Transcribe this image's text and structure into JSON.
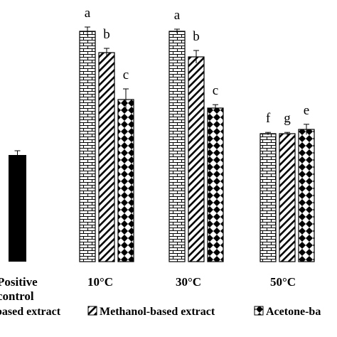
{
  "chart_data": {
    "type": "bar",
    "categories": [
      "Positive control",
      "10°C",
      "30°C",
      "50°C"
    ],
    "category_lines": [
      [
        "Positive",
        "control"
      ],
      [
        "10°C"
      ],
      [
        "30°C"
      ],
      [
        "50°C"
      ]
    ],
    "positive_control": {
      "value": 25,
      "error": 1
    },
    "series": [
      {
        "name": "based extract",
        "pattern": "brick",
        "values": [
          null,
          54,
          54,
          30
        ],
        "errors": [
          null,
          1,
          0.5,
          0.3
        ],
        "letters": [
          null,
          "a",
          "a",
          "f"
        ]
      },
      {
        "name": "Methanol-based extract",
        "pattern": "diagonal",
        "values": [
          null,
          49,
          48,
          30
        ],
        "errors": [
          null,
          1,
          1.5,
          0.3
        ],
        "letters": [
          null,
          "b",
          "b",
          "g"
        ]
      },
      {
        "name": "Acetone-ba",
        "pattern": "diamond",
        "values": [
          null,
          38,
          36,
          31
        ],
        "errors": [
          null,
          2.5,
          0.8,
          1.2
        ],
        "letters": [
          null,
          "c",
          "c",
          "e"
        ]
      }
    ],
    "ylim": [
      0,
      60
    ],
    "grid": false,
    "legend_position": "bottom"
  },
  "colors": {
    "bar_fill": "#ffffff",
    "stroke": "#000000",
    "control_fill": "#000000"
  }
}
